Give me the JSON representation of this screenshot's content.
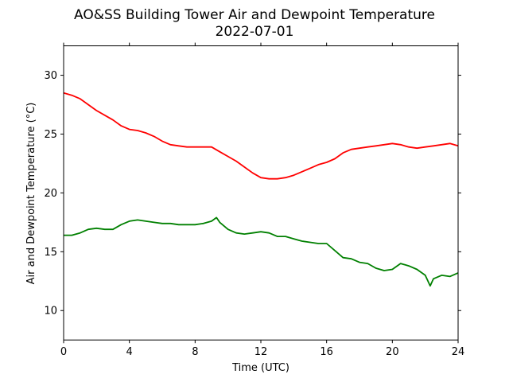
{
  "chart_data": {
    "type": "line",
    "title": "AO&SS Building Tower Air and Dewpoint Temperature",
    "subtitle": "2022-07-01",
    "xlabel": "Time (UTC)",
    "ylabel": "Air and Dewpoint Temperature (°C)",
    "xlim": [
      0,
      24
    ],
    "ylim": [
      7.5,
      32.5
    ],
    "xticks": [
      0,
      4,
      8,
      12,
      16,
      20,
      24
    ],
    "yticks": [
      10,
      15,
      20,
      25,
      30
    ],
    "grid": false,
    "legend": "none",
    "series": [
      {
        "color": "#ff0000",
        "x": [
          0,
          0.5,
          1,
          1.5,
          2,
          2.5,
          3,
          3.5,
          4,
          4.5,
          5,
          5.5,
          6,
          6.5,
          7,
          7.5,
          8,
          8.5,
          9,
          9.5,
          10,
          10.5,
          11,
          11.5,
          12,
          12.5,
          13,
          13.5,
          14,
          14.5,
          15,
          15.5,
          16,
          16.5,
          17,
          17.5,
          18,
          18.5,
          19,
          19.5,
          20,
          20.5,
          21,
          21.5,
          22,
          22.5,
          23,
          23.5,
          24
        ],
        "y": [
          28.5,
          28.3,
          28.0,
          27.5,
          27.0,
          26.6,
          26.2,
          25.7,
          25.4,
          25.3,
          25.1,
          24.8,
          24.4,
          24.1,
          24.0,
          23.9,
          23.9,
          23.9,
          23.9,
          23.5,
          23.1,
          22.7,
          22.2,
          21.7,
          21.3,
          21.2,
          21.2,
          21.3,
          21.5,
          21.8,
          22.1,
          22.4,
          22.6,
          22.9,
          23.4,
          23.7,
          23.8,
          23.9,
          24.0,
          24.1,
          24.2,
          24.1,
          23.9,
          23.8,
          23.9,
          24.0,
          24.1,
          24.2,
          24.0
        ]
      },
      {
        "color": "#008000",
        "x": [
          0,
          0.5,
          1,
          1.5,
          2,
          2.5,
          3,
          3.5,
          4,
          4.5,
          5,
          5.5,
          6,
          6.5,
          7,
          7.5,
          8,
          8.5,
          9,
          9.3,
          9.5,
          10,
          10.5,
          11,
          11.5,
          12,
          12.5,
          13,
          13.5,
          14,
          14.5,
          15,
          15.5,
          16,
          16.5,
          17,
          17.5,
          18,
          18.5,
          19,
          19.5,
          20,
          20.5,
          21,
          21.5,
          22,
          22.3,
          22.5,
          23,
          23.5,
          24
        ],
        "y": [
          16.4,
          16.4,
          16.6,
          16.9,
          17.0,
          16.9,
          16.9,
          17.3,
          17.6,
          17.7,
          17.6,
          17.5,
          17.4,
          17.4,
          17.3,
          17.3,
          17.3,
          17.4,
          17.6,
          17.9,
          17.5,
          16.9,
          16.6,
          16.5,
          16.6,
          16.7,
          16.6,
          16.3,
          16.3,
          16.1,
          15.9,
          15.8,
          15.7,
          15.7,
          15.1,
          14.5,
          14.4,
          14.1,
          14.0,
          13.6,
          13.4,
          13.5,
          14.0,
          13.8,
          13.5,
          13.0,
          12.1,
          12.7,
          13.0,
          12.9,
          13.2
        ]
      }
    ]
  }
}
